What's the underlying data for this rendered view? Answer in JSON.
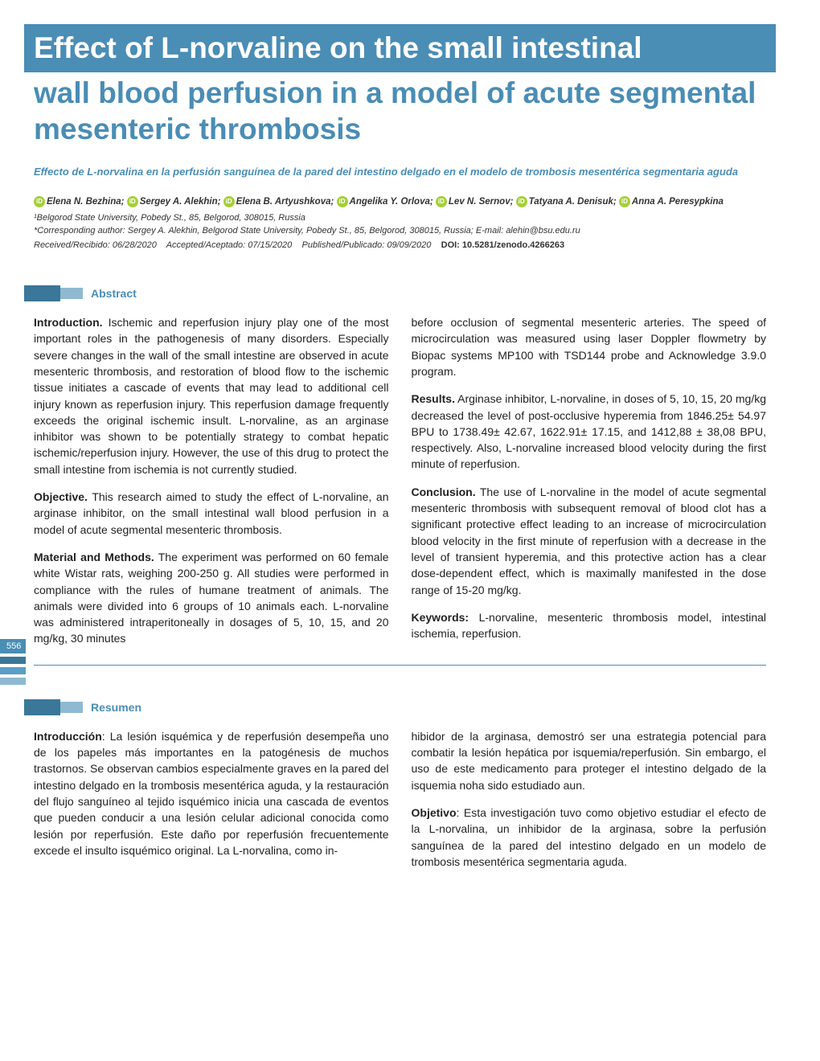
{
  "title": {
    "line1": "Effect of L-norvaline on the small intestinal",
    "line2": "wall blood perfusion in a model of acute segmental mesenteric thrombosis"
  },
  "subtitle": "Effecto de L-norvalina en la perfusión sanguínea de la pared del intestino delgado en el modelo de trombosis mesentérica segmentaria aguda",
  "authors": [
    "Elena N. Bezhina;",
    "Sergey A. Alekhin;",
    "Elena B. Artyushkova;",
    "Angelika Y. Orlova;",
    "Lev N. Sernov;",
    "Tatyana A. Denisuk;",
    "Anna A. Peresypkina"
  ],
  "affiliation": "¹Belgorod State University, Pobedy St., 85, Belgorod, 308015, Russia",
  "corresponding": "*Corresponding author: Sergey A. Alekhin, Belgorod State University, Pobedy St., 85, Belgorod, 308015, Russia; E-mail: alehin@bsu.edu.ru",
  "dates": {
    "received": "Received/Recibido: 06/28/2020",
    "accepted": "Accepted/Aceptado: 07/15/2020",
    "published": "Published/Publicado: 09/09/2020",
    "doi": "DOI: 10.5281/zenodo.4266263"
  },
  "sections": {
    "abstract_label": "Abstract",
    "resumen_label": "Resumen"
  },
  "abstract": {
    "col1": {
      "intro_label": "Introduction.",
      "intro": " Ischemic and reperfusion injury play one of the most important roles in the pathogenesis of many disorders. Especially severe changes in the wall of the small intestine are observed in acute mesenteric thrombosis, and restoration of blood flow to the ischemic tissue initiates a cascade of events that may lead to additional cell injury known as reperfusion injury. This reperfusion damage frequently exceeds the original ischemic insult. L-norvaline, as an arginase inhibitor was shown to be potentially strategy to combat hepatic ischemic/reperfusion injury. However, the use of this drug to protect the small intestine from ischemia is not currently studied.",
      "objective_label": "Objective.",
      "objective": " This research aimed to study the effect of L-norvaline, an arginase inhibitor, on the small intestinal wall blood perfusion in a model of acute segmental mesenteric thrombosis.",
      "methods_label": "Material and Methods.",
      "methods": " The experiment was performed on 60 female white Wistar rats, weighing 200-250 g. All studies were performed in compliance with the rules of humane treatment of animals. The animals were divided into 6 groups of 10 animals each. L-norvaline was administered intraperitoneally in dosages of 5, 10, 15, and 20 mg/kg, 30 minutes"
    },
    "col2": {
      "methods_cont": "before occlusion of segmental mesenteric arteries. The speed of microcirculation was measured using laser Doppler flowmetry by Biopac systems MP100 with TSD144 probe and Acknowledge 3.9.0 program.",
      "results_label": "Results.",
      "results": " Arginase inhibitor, L-norvaline, in doses of 5, 10, 15, 20 mg/kg decreased the level of post-occlusive hyperemia from 1846.25± 54.97 BPU to 1738.49± 42.67, 1622.91± 17.15, and 1412,88 ± 38,08 BPU, respectively. Also, L-norvaline increased blood velocity during the first minute of reperfusion.",
      "conclusion_label": "Conclusion.",
      "conclusion": " The use of L-norvaline in the model of acute segmental mesenteric thrombosis with subsequent removal of blood clot has a significant protective effect leading to an increase of microcirculation blood velocity in the first minute of reperfusion with a decrease in the level of transient hyperemia, and this protective action has a clear dose-dependent effect, which is maximally manifested in the dose range of 15-20 mg/kg.",
      "keywords_label": "Keywords:",
      "keywords": " L-norvaline, mesenteric thrombosis model, intestinal ischemia, reperfusion."
    }
  },
  "resumen": {
    "col1": {
      "intro_label": "Introducción",
      "intro": ": La lesión isquémica y de reperfusión desempeña uno de los papeles más importantes en la patogénesis de muchos trastornos. Se observan cambios especialmente graves en la pared del intestino delgado en la trombosis mesentérica aguda, y la restauración del flujo sanguíneo al tejido isquémico inicia una cascada de eventos que pueden conducir a una lesión celular adicional conocida como lesión por reperfusión. Este daño por reperfusión frecuentemente excede el insulto isquémico original. La L-norvalina, como in-"
    },
    "col2": {
      "intro_cont": "hibidor de la arginasa, demostró ser una estrategia potencial para combatir la lesión hepática por isquemia/reperfusión. Sin embargo, el uso de este medicamento para proteger el intestino delgado de la isquemia noha sido estudiado aun.",
      "objetivo_label": "Objetivo",
      "objetivo": ": Esta investigación tuvo como objetivo estudiar el efecto de la L-norvalina, un inhibidor de la arginasa, sobre la perfusión sanguínea de la pared del intestino delgado en un modelo de trombosis mesentérica segmentaria aguda."
    }
  },
  "page_number": "556",
  "colors": {
    "primary": "#4a8db5",
    "dark": "#3a7799",
    "light": "#8fb9d1",
    "orcid": "#a6ce39"
  }
}
